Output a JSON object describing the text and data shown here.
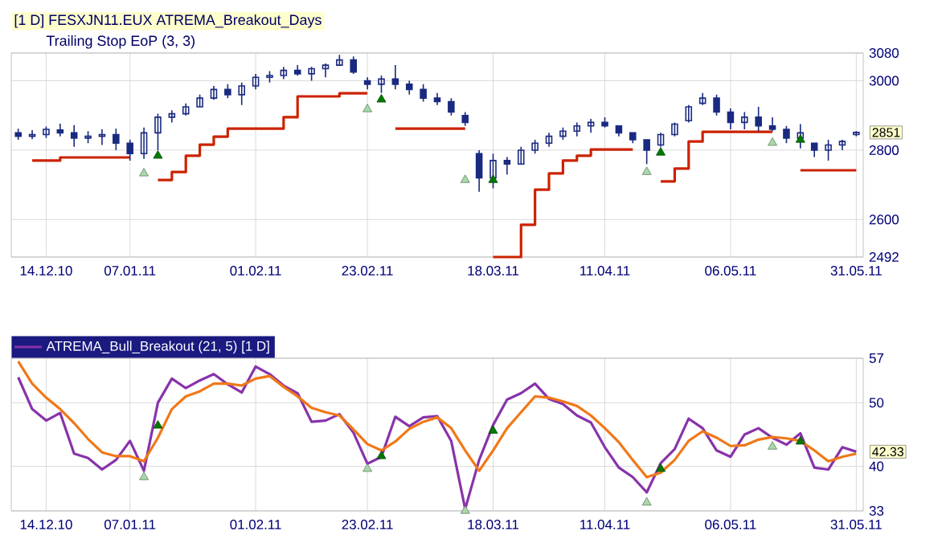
{
  "chart_data": [
    {
      "type": "candlestick",
      "title": "[1 D] FESXJN11.EUX ATREMA_Breakout_Days",
      "subtitle": "Trailing Stop EoP  (3, 3)",
      "categories": [
        null,
        null,
        "14.12.10",
        null,
        null,
        null,
        null,
        null,
        "07.01.11",
        null,
        null,
        null,
        null,
        null,
        null,
        null,
        null,
        "01.02.11",
        null,
        null,
        null,
        null,
        null,
        null,
        null,
        "23.02.11",
        null,
        null,
        null,
        null,
        null,
        null,
        null,
        null,
        "18.03.11",
        null,
        null,
        null,
        null,
        null,
        null,
        null,
        "11.04.11",
        null,
        null,
        null,
        null,
        null,
        null,
        null,
        null,
        "06.05.11",
        null,
        null,
        null,
        null,
        null,
        null,
        null,
        null,
        "31.05.11"
      ],
      "color": "#1a2a80",
      "ohlc": [
        [
          2850,
          2862,
          2830,
          2840
        ],
        [
          2840,
          2858,
          2832,
          2845
        ],
        [
          2845,
          2868,
          2835,
          2860
        ],
        [
          2858,
          2876,
          2840,
          2850
        ],
        [
          2850,
          2872,
          2810,
          2835
        ],
        [
          2835,
          2855,
          2820,
          2840
        ],
        [
          2840,
          2860,
          2815,
          2845
        ],
        [
          2845,
          2862,
          2800,
          2820
        ],
        [
          2820,
          2830,
          2770,
          2790
        ],
        [
          2790,
          2865,
          2775,
          2850
        ],
        [
          2850,
          2905,
          2800,
          2895
        ],
        [
          2895,
          2915,
          2880,
          2905
        ],
        [
          2905,
          2935,
          2900,
          2925
        ],
        [
          2925,
          2960,
          2925,
          2950
        ],
        [
          2950,
          2985,
          2945,
          2975
        ],
        [
          2975,
          2990,
          2950,
          2960
        ],
        [
          2960,
          2995,
          2930,
          2985
        ],
        [
          2985,
          3020,
          2975,
          3010
        ],
        [
          3010,
          3028,
          2995,
          3015
        ],
        [
          3015,
          3040,
          3005,
          3030
        ],
        [
          3030,
          3045,
          3015,
          3020
        ],
        [
          3020,
          3040,
          3000,
          3035
        ],
        [
          3035,
          3050,
          3010,
          3045
        ],
        [
          3045,
          3075,
          3045,
          3060
        ],
        [
          3060,
          3070,
          3020,
          3025
        ],
        [
          3000,
          3010,
          2975,
          2990
        ],
        [
          2990,
          3015,
          2965,
          3005
        ],
        [
          3005,
          3045,
          2975,
          2990
        ],
        [
          2990,
          3000,
          2960,
          2975
        ],
        [
          2975,
          2990,
          2940,
          2950
        ],
        [
          2950,
          2965,
          2930,
          2940
        ],
        [
          2940,
          2950,
          2900,
          2910
        ],
        [
          2900,
          2910,
          2870,
          2880
        ],
        [
          2790,
          2800,
          2680,
          2720
        ],
        [
          2720,
          2790,
          2690,
          2770
        ],
        [
          2770,
          2780,
          2730,
          2760
        ],
        [
          2760,
          2810,
          2760,
          2800
        ],
        [
          2800,
          2830,
          2790,
          2820
        ],
        [
          2820,
          2850,
          2810,
          2840
        ],
        [
          2840,
          2865,
          2830,
          2855
        ],
        [
          2855,
          2880,
          2840,
          2870
        ],
        [
          2870,
          2890,
          2850,
          2880
        ],
        [
          2880,
          2895,
          2865,
          2870
        ],
        [
          2870,
          2870,
          2840,
          2850
        ],
        [
          2850,
          2850,
          2820,
          2830
        ],
        [
          2830,
          2830,
          2760,
          2800
        ],
        [
          2815,
          2850,
          2810,
          2845
        ],
        [
          2845,
          2880,
          2840,
          2875
        ],
        [
          2885,
          2930,
          2880,
          2925
        ],
        [
          2935,
          2965,
          2930,
          2950
        ],
        [
          2950,
          2960,
          2900,
          2910
        ],
        [
          2910,
          2920,
          2860,
          2880
        ],
        [
          2880,
          2910,
          2860,
          2895
        ],
        [
          2895,
          2925,
          2855,
          2870
        ],
        [
          2870,
          2895,
          2855,
          2860
        ],
        [
          2860,
          2870,
          2820,
          2835
        ],
        [
          2835,
          2875,
          2805,
          2850
        ],
        [
          2820,
          2820,
          2780,
          2800
        ],
        [
          2800,
          2830,
          2770,
          2815
        ],
        [
          2815,
          2830,
          2800,
          2825
        ],
        [
          2845,
          2855,
          2840,
          2851
        ]
      ],
      "series": [
        {
          "type": "step",
          "color": "#cc2200",
          "values": [
            null,
            2770,
            2770,
            2779,
            2779,
            2779,
            2779,
            2779,
            2779,
            null,
            2714,
            2737,
            2784,
            2816,
            2839,
            2862,
            2862,
            2862,
            2862,
            2895,
            2955,
            2955,
            2955,
            2964,
            2964,
            2964,
            null,
            2862,
            2862,
            2862,
            2862,
            2862,
            2862,
            null,
            2492,
            2492,
            2585,
            2686,
            2733,
            2770,
            2784,
            2802,
            2802,
            2802,
            2802,
            null,
            2710,
            2747,
            2825,
            2853,
            2853,
            2853,
            2853,
            2853,
            2853,
            null,
            2742,
            2742,
            2742,
            2742,
            2742
          ]
        },
        {
          "type": "scatter",
          "marker": "triangle",
          "color": "#a8d8a8",
          "values": [
            null,
            null,
            null,
            null,
            null,
            null,
            null,
            null,
            null,
            2733,
            null,
            null,
            null,
            null,
            null,
            null,
            null,
            null,
            null,
            null,
            null,
            null,
            null,
            null,
            null,
            2918,
            null,
            null,
            null,
            null,
            null,
            null,
            2714,
            null,
            null,
            null,
            null,
            null,
            null,
            null,
            null,
            null,
            null,
            null,
            null,
            2737,
            null,
            null,
            null,
            null,
            null,
            null,
            null,
            null,
            2821,
            null,
            null,
            null,
            null,
            null,
            null
          ]
        },
        {
          "type": "scatter",
          "marker": "triangle",
          "color": "#007a00",
          "values": [
            null,
            null,
            null,
            null,
            null,
            null,
            null,
            null,
            null,
            null,
            2784,
            null,
            null,
            null,
            null,
            null,
            null,
            null,
            null,
            null,
            null,
            null,
            null,
            null,
            null,
            null,
            2946,
            null,
            null,
            null,
            null,
            null,
            null,
            null,
            2714,
            null,
            null,
            null,
            null,
            null,
            null,
            null,
            null,
            null,
            null,
            null,
            2793,
            null,
            null,
            null,
            null,
            null,
            null,
            null,
            null,
            null,
            2830,
            null,
            null,
            null,
            null
          ]
        }
      ],
      "ylim": [
        2492,
        3080
      ],
      "yticks": [
        2492,
        2600,
        2800,
        3000,
        3080
      ],
      "grid": true,
      "annotations": [
        "2851"
      ]
    },
    {
      "type": "line",
      "legend": "top left",
      "categories": [
        null,
        null,
        "14.12.10",
        null,
        null,
        null,
        null,
        null,
        "07.01.11",
        null,
        null,
        null,
        null,
        null,
        null,
        null,
        null,
        "01.02.11",
        null,
        null,
        null,
        null,
        null,
        null,
        null,
        "23.02.11",
        null,
        null,
        null,
        null,
        null,
        null,
        null,
        null,
        "18.03.11",
        null,
        null,
        null,
        null,
        null,
        null,
        null,
        "11.04.11",
        null,
        null,
        null,
        null,
        null,
        null,
        null,
        null,
        "06.05.11",
        null,
        null,
        null,
        null,
        null,
        null,
        null,
        null,
        "31.05.11"
      ],
      "series": [
        {
          "name": "ATREMA_Bull_Breakout (21, 5) [1 D]",
          "type": "line",
          "color": "#8833aa",
          "values": [
            54.0,
            49.0,
            47.2,
            48.4,
            42.0,
            41.3,
            39.5,
            41.0,
            44.0,
            39.3,
            50.0,
            53.8,
            52.3,
            53.5,
            54.5,
            52.9,
            51.6,
            55.7,
            54.5,
            52.7,
            51.5,
            47.0,
            47.2,
            48.2,
            45.3,
            40.4,
            41.5,
            47.8,
            46.3,
            47.7,
            47.9,
            44.0,
            33.3,
            41.0,
            46.5,
            50.5,
            51.5,
            53.0,
            50.6,
            49.8,
            48.0,
            46.9,
            43.0,
            39.8,
            38.3,
            35.9,
            40.5,
            42.7,
            47.5,
            46.0,
            42.5,
            41.5,
            45.0,
            46.0,
            44.5,
            43.4,
            45.2,
            39.8,
            39.5,
            43.0,
            42.3
          ]
        },
        {
          "type": "line",
          "color": "#f07818",
          "values": [
            56.5,
            53.0,
            50.8,
            49.0,
            46.8,
            44.3,
            42.2,
            41.6,
            41.6,
            40.8,
            44.5,
            49.0,
            51.0,
            51.8,
            53.0,
            53.0,
            52.7,
            53.8,
            54.2,
            52.5,
            51.0,
            49.2,
            48.5,
            48.0,
            45.8,
            43.5,
            42.5,
            43.9,
            45.9,
            47.0,
            47.7,
            46.0,
            42.5,
            39.3,
            42.5,
            46.0,
            48.5,
            51.0,
            50.8,
            50.2,
            49.5,
            48.0,
            46.0,
            43.8,
            41.0,
            38.3,
            39.0,
            41.0,
            44.0,
            45.5,
            44.5,
            43.2,
            43.3,
            44.2,
            44.6,
            44.4,
            44.0,
            42.5,
            40.8,
            41.5,
            42.0
          ]
        },
        {
          "type": "scatter",
          "marker": "triangle",
          "color": "#a8d8a8",
          "values": [
            null,
            null,
            null,
            null,
            null,
            null,
            null,
            null,
            null,
            38.3,
            null,
            null,
            null,
            null,
            null,
            null,
            null,
            null,
            null,
            null,
            null,
            null,
            null,
            null,
            null,
            39.6,
            null,
            null,
            null,
            null,
            null,
            null,
            33,
            null,
            null,
            null,
            null,
            null,
            null,
            null,
            null,
            null,
            null,
            null,
            null,
            34.3,
            null,
            null,
            null,
            null,
            null,
            null,
            null,
            null,
            43.1,
            null,
            null,
            null,
            null,
            null,
            null
          ]
        },
        {
          "type": "scatter",
          "marker": "triangle",
          "color": "#007a00",
          "values": [
            null,
            null,
            null,
            null,
            null,
            null,
            null,
            null,
            null,
            null,
            46.4,
            null,
            null,
            null,
            null,
            null,
            null,
            null,
            null,
            null,
            null,
            null,
            null,
            null,
            null,
            null,
            41.6,
            null,
            null,
            null,
            null,
            null,
            null,
            null,
            45.6,
            null,
            null,
            null,
            null,
            null,
            null,
            null,
            null,
            null,
            null,
            null,
            39.6,
            null,
            null,
            null,
            null,
            null,
            null,
            null,
            null,
            null,
            43.9,
            null,
            null,
            null,
            null
          ]
        }
      ],
      "ylim": [
        33,
        57
      ],
      "yticks": [
        33,
        40,
        50,
        57
      ],
      "grid": true,
      "annotations": [
        "42.33"
      ]
    }
  ]
}
